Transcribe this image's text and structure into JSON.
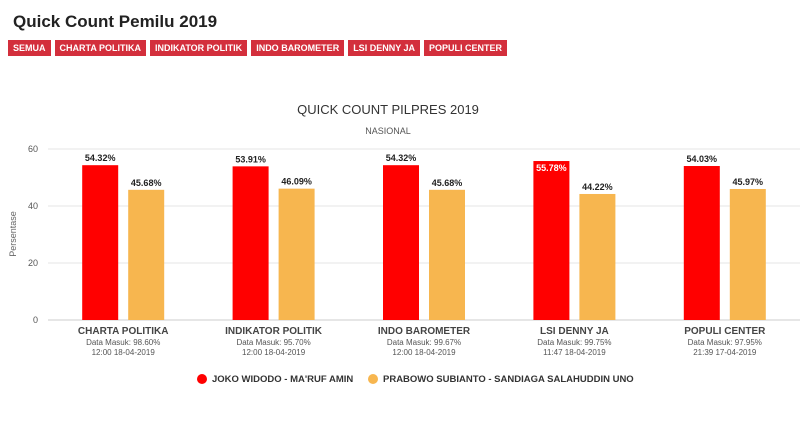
{
  "page": {
    "title": "Quick Count Pemilu 2019"
  },
  "tabs": [
    "SEMUA",
    "CHARTA POLITIKA",
    "INDIKATOR POLITIK",
    "INDO BAROMETER",
    "LSI DENNY JA",
    "POPULI CENTER"
  ],
  "chart_data": {
    "type": "bar",
    "title": "QUICK COUNT PILPRES 2019",
    "subtitle": "NASIONAL",
    "ylabel": "Persentase",
    "xlabel": "",
    "ylim": [
      0,
      60
    ],
    "yticks": [
      0,
      20,
      40,
      60
    ],
    "grid": true,
    "legend_position": "bottom",
    "categories": [
      "CHARTA POLITIKA",
      "INDIKATOR POLITIK",
      "INDO BAROMETER",
      "LSI DENNY JA",
      "POPULI CENTER"
    ],
    "category_meta": [
      [
        "Data Masuk: 98.60%",
        "12:00 18-04-2019"
      ],
      [
        "Data Masuk: 95.70%",
        "12:00 18-04-2019"
      ],
      [
        "Data Masuk: 99.67%",
        "12:00 18-04-2019"
      ],
      [
        "Data Masuk: 99.75%",
        "11:47 18-04-2019"
      ],
      [
        "Data Masuk: 97.95%",
        "21:39 17-04-2019"
      ]
    ],
    "series": [
      {
        "name": "JOKO WIDODO - MA'RUF AMIN",
        "color": "#ff0000",
        "values": [
          54.32,
          53.91,
          54.32,
          55.78,
          54.03
        ],
        "labels": [
          "54.32%",
          "53.91%",
          "54.32%",
          "55.78%",
          "54.03%"
        ]
      },
      {
        "name": "PRABOWO SUBIANTO - SANDIAGA SALAHUDDIN UNO",
        "color": "#f7b64f",
        "values": [
          45.68,
          46.09,
          45.68,
          44.22,
          45.97
        ],
        "labels": [
          "45.68%",
          "46.09%",
          "45.68%",
          "44.22%",
          "45.97%"
        ]
      }
    ]
  }
}
